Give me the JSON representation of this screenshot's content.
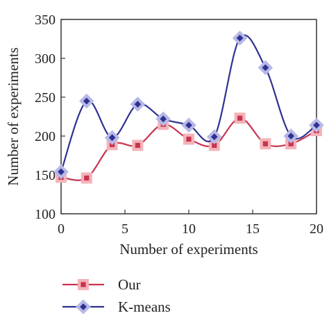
{
  "chart_data": {
    "type": "line",
    "xlabel": "Number of experiments",
    "ylabel": "Number of experiments",
    "xlim": [
      0,
      20
    ],
    "ylim": [
      100,
      350
    ],
    "xticks": [
      0,
      5,
      10,
      15,
      20
    ],
    "yticks": [
      100,
      150,
      200,
      250,
      300,
      350
    ],
    "grid": false,
    "legend_position": "bottom",
    "x": [
      0,
      2,
      4,
      6,
      8,
      10,
      12,
      14,
      16,
      18,
      20
    ],
    "series": [
      {
        "name": "Our",
        "color": "#c8334f",
        "halo": "#f3b3b8",
        "marker": "square",
        "values": [
          147,
          146,
          189,
          188,
          215,
          196,
          188,
          223,
          190,
          190,
          207
        ]
      },
      {
        "name": "K-means",
        "color": "#2e3192",
        "halo": "#b7b8e6",
        "marker": "diamond",
        "values": [
          154,
          245,
          198,
          241,
          222,
          214,
          199,
          326,
          288,
          200,
          214
        ]
      }
    ]
  }
}
